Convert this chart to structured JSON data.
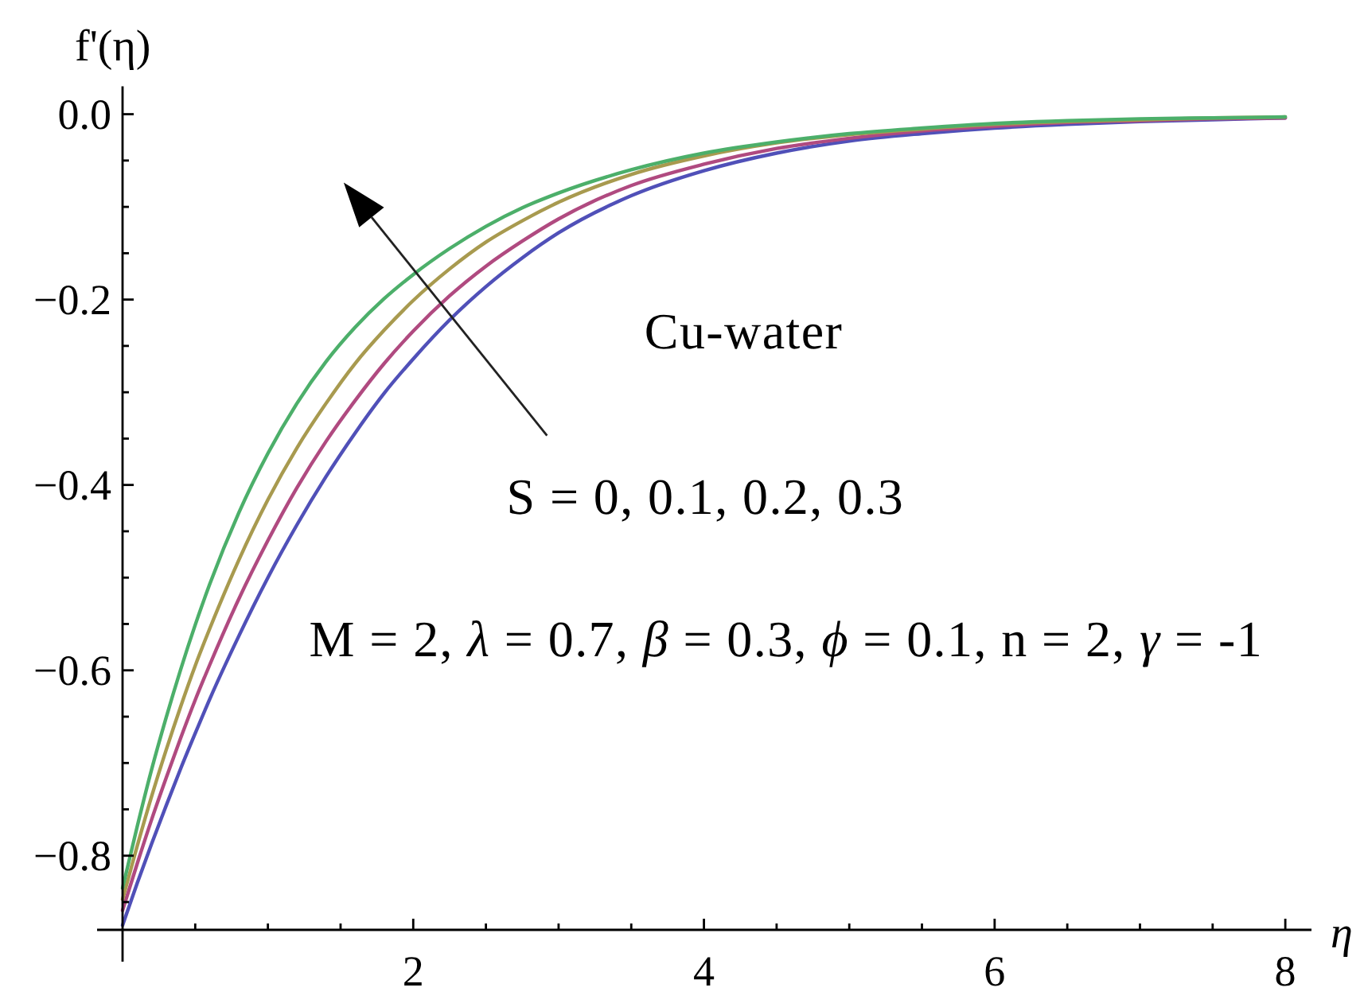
{
  "chart_data": {
    "type": "line",
    "xlabel": "η",
    "ylabel": "f'(η)",
    "x": [
      0,
      0.1,
      0.2,
      0.3,
      0.4,
      0.5,
      0.6,
      0.8,
      1,
      1.2,
      1.4,
      1.6,
      1.8,
      2,
      2.25,
      2.5,
      2.75,
      3,
      3.5,
      4,
      4.5,
      5,
      5.5,
      6,
      6.5,
      7,
      7.5,
      8
    ],
    "series": [
      {
        "color": "#5050b8",
        "values": [
          -0.875,
          -0.83,
          -0.787,
          -0.746,
          -0.706,
          -0.668,
          -0.631,
          -0.563,
          -0.5,
          -0.443,
          -0.391,
          -0.344,
          -0.301,
          -0.264,
          -0.222,
          -0.186,
          -0.155,
          -0.128,
          -0.088,
          -0.061,
          -0.042,
          -0.029,
          -0.021,
          -0.015,
          -0.011,
          -0.008,
          -0.006,
          -0.004
        ]
      },
      {
        "color": "#b04a80",
        "values": [
          -0.859,
          -0.809,
          -0.761,
          -0.716,
          -0.673,
          -0.632,
          -0.594,
          -0.523,
          -0.46,
          -0.403,
          -0.353,
          -0.309,
          -0.269,
          -0.234,
          -0.196,
          -0.164,
          -0.137,
          -0.113,
          -0.077,
          -0.054,
          -0.037,
          -0.026,
          -0.018,
          -0.013,
          -0.009,
          -0.007,
          -0.005,
          -0.004
        ]
      },
      {
        "color": "#a89a4f",
        "values": [
          -0.847,
          -0.79,
          -0.736,
          -0.686,
          -0.639,
          -0.595,
          -0.555,
          -0.481,
          -0.416,
          -0.36,
          -0.312,
          -0.269,
          -0.233,
          -0.201,
          -0.167,
          -0.138,
          -0.115,
          -0.095,
          -0.065,
          -0.045,
          -0.031,
          -0.022,
          -0.016,
          -0.011,
          -0.008,
          -0.006,
          -0.004,
          -0.003
        ]
      },
      {
        "color": "#4caf6a",
        "values": [
          -0.835,
          -0.769,
          -0.707,
          -0.651,
          -0.599,
          -0.551,
          -0.507,
          -0.43,
          -0.366,
          -0.312,
          -0.267,
          -0.23,
          -0.199,
          -0.173,
          -0.145,
          -0.121,
          -0.101,
          -0.085,
          -0.06,
          -0.042,
          -0.03,
          -0.021,
          -0.015,
          -0.01,
          -0.007,
          -0.005,
          -0.004,
          -0.003
        ]
      }
    ],
    "xlim": [
      0,
      8.18
    ],
    "ylim": [
      -0.88,
      0.03
    ],
    "xticks": [
      {
        "value": 0.5,
        "label": null
      },
      {
        "value": 1,
        "label": null
      },
      {
        "value": 1.5,
        "label": null
      },
      2,
      {
        "value": 2.5,
        "label": null
      },
      {
        "value": 3,
        "label": null
      },
      {
        "value": 3.5,
        "label": null
      },
      4,
      {
        "value": 4.5,
        "label": null
      },
      {
        "value": 5,
        "label": null
      },
      {
        "value": 5.5,
        "label": null
      },
      6,
      {
        "value": 6.5,
        "label": null
      },
      {
        "value": 7,
        "label": null
      },
      {
        "value": 7.5,
        "label": null
      },
      8
    ],
    "yticks": [
      {
        "value": 0,
        "label": "0.0"
      },
      {
        "value": -0.05,
        "label": null
      },
      {
        "value": -0.1,
        "label": null
      },
      {
        "value": -0.15,
        "label": null
      },
      {
        "value": -0.2,
        "label": "−0.2"
      },
      {
        "value": -0.25,
        "label": null
      },
      {
        "value": -0.3,
        "label": null
      },
      {
        "value": -0.35,
        "label": null
      },
      {
        "value": -0.4,
        "label": "−0.4"
      },
      {
        "value": -0.45,
        "label": null
      },
      {
        "value": -0.5,
        "label": null
      },
      {
        "value": -0.55,
        "label": null
      },
      {
        "value": -0.6,
        "label": "−0.6"
      },
      {
        "value": -0.65,
        "label": null
      },
      {
        "value": -0.7,
        "label": null
      },
      {
        "value": -0.75,
        "label": null
      },
      {
        "value": -0.8,
        "label": "−0.8"
      },
      {
        "value": -0.85,
        "label": null
      }
    ],
    "line_style": "solid",
    "annotations": [
      "Cu-water",
      "S = 0, 0.1, 0.2, 0.3",
      "M = 2, λ = 0.7, β = 0.3, ϕ = 0.1, n = 2, γ = -1"
    ]
  }
}
